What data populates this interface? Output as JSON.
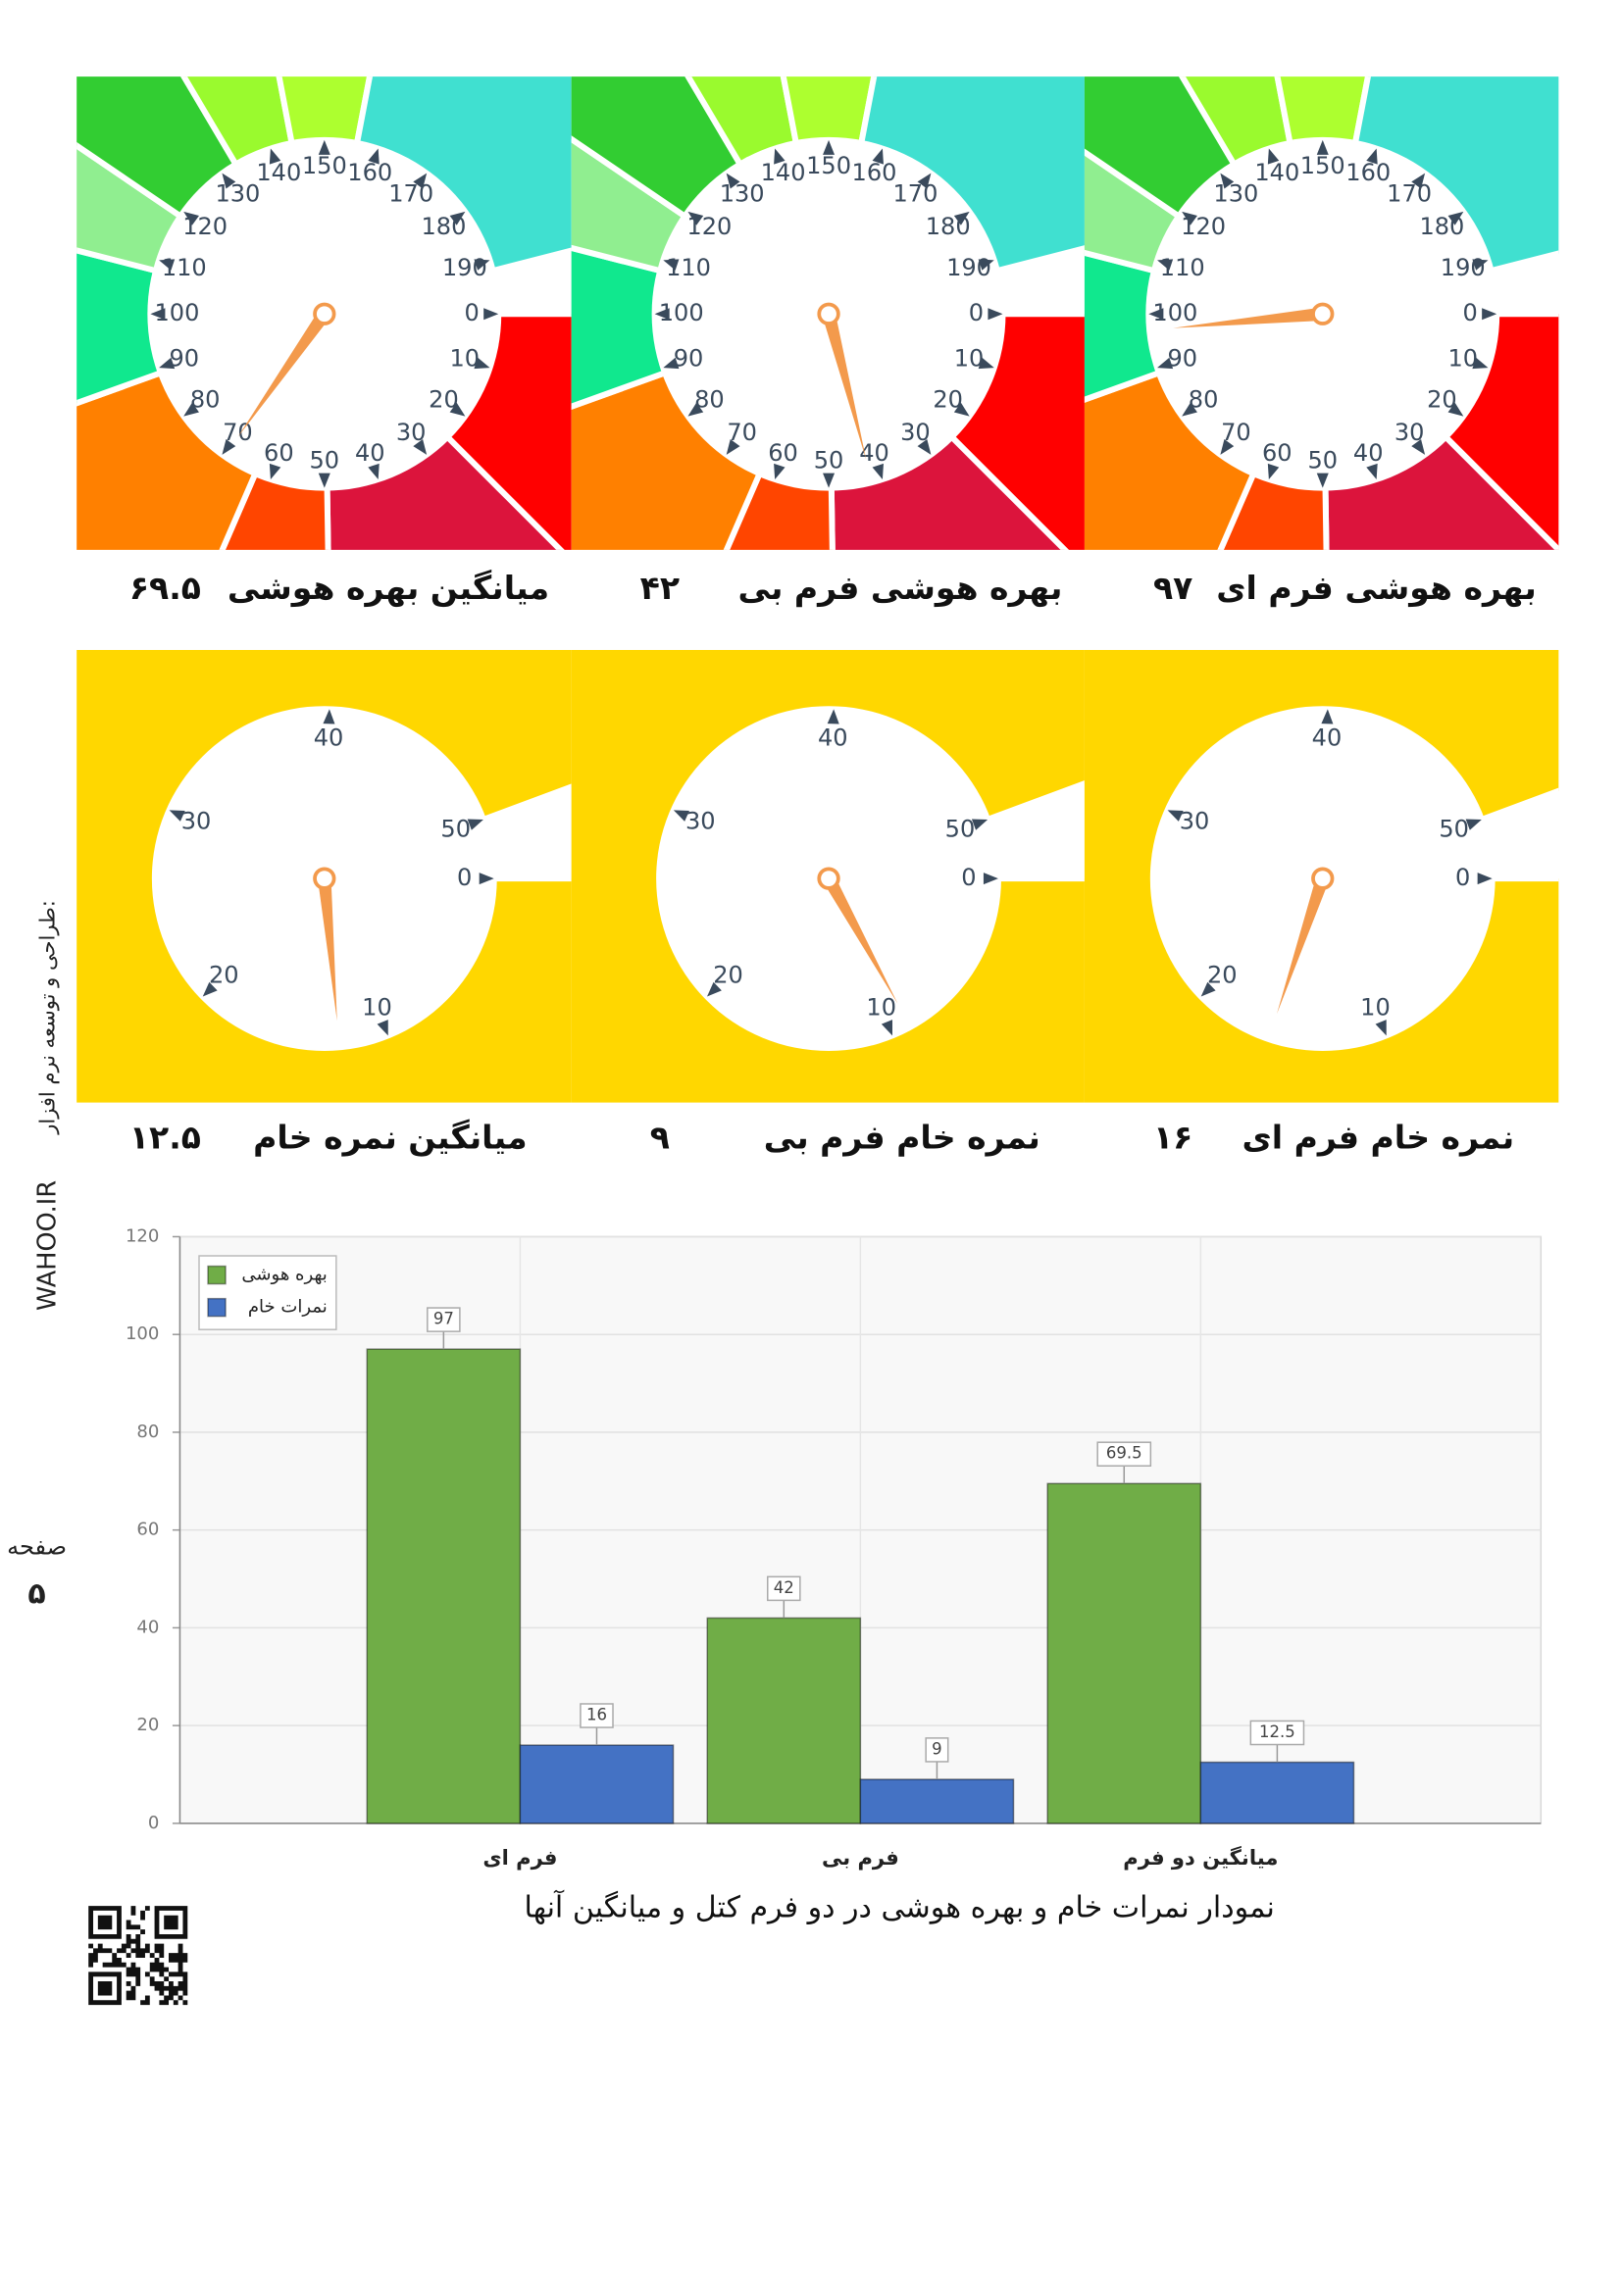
{
  "side_credit": "طراحی و توسعه نرم افزار:",
  "side_site": "WAHOO.IR",
  "page": {
    "label": "صفحه",
    "number": "۵"
  },
  "iq_gauges": {
    "range": [
      0,
      200
    ],
    "ticks": [
      0,
      10,
      20,
      30,
      40,
      50,
      60,
      70,
      80,
      90,
      100,
      110,
      120,
      130,
      140,
      150,
      160,
      170,
      180,
      190
    ],
    "bands": [
      {
        "from": 0,
        "to": 25,
        "color": "#ff0000"
      },
      {
        "from": 25,
        "to": 49.5,
        "color": "#dc143c"
      },
      {
        "from": 49.5,
        "to": 63,
        "color": "#ff4500"
      },
      {
        "from": 63,
        "to": 89,
        "color": "#ff8000"
      },
      {
        "from": 89,
        "to": 108,
        "color": "#10e88e"
      },
      {
        "from": 108,
        "to": 119,
        "color": "#90ee90"
      },
      {
        "from": 119,
        "to": 133,
        "color": "#32cd32"
      },
      {
        "from": 133,
        "to": 144,
        "color": "#9afa2e"
      },
      {
        "from": 144,
        "to": 156,
        "color": "#adff2f"
      },
      {
        "from": 156,
        "to": 192,
        "color": "#40e0d0"
      }
    ],
    "needle_color": "#f39a4c",
    "titles": [
      "میانگین بهره هوشی",
      "بهره هوشی فرم بی",
      "بهره هوشی فرم ای"
    ],
    "values": [
      69.5,
      42,
      97
    ],
    "value_labels": [
      "۶۹.۵",
      "۴۲",
      "۹۷"
    ]
  },
  "raw_gauges": {
    "range": [
      0,
      53
    ],
    "ticks": [
      0,
      10,
      20,
      30,
      40,
      50
    ],
    "bands": [
      {
        "from": 0,
        "to": 50,
        "color": "#ffd700"
      }
    ],
    "needle_color": "#f39a4c",
    "titles": [
      "میانگین نمره خام",
      "نمره خام فرم بی",
      "نمره خام فرم ای"
    ],
    "values": [
      12.5,
      9,
      16
    ],
    "value_labels": [
      "۱۲.۵",
      "۹",
      "۱۶"
    ]
  },
  "chart_data": {
    "type": "bar",
    "caption": "نمودار نمرات خام و بهره هوشی در دو فرم کتل و میانگین آنها",
    "categories": [
      "فرم ای",
      "فرم بی",
      "میانگین دو فرم"
    ],
    "series": [
      {
        "name": "بهره هوشی",
        "color": "#70ad47",
        "values": [
          97,
          42,
          69.5
        ]
      },
      {
        "name": "نمرات خام",
        "color": "#4472c4",
        "values": [
          16,
          9,
          12.5
        ]
      }
    ],
    "ylim": [
      0,
      120
    ],
    "yticks": [
      0,
      20,
      40,
      60,
      80,
      100,
      120
    ],
    "grid": true,
    "legend": "upper left"
  }
}
